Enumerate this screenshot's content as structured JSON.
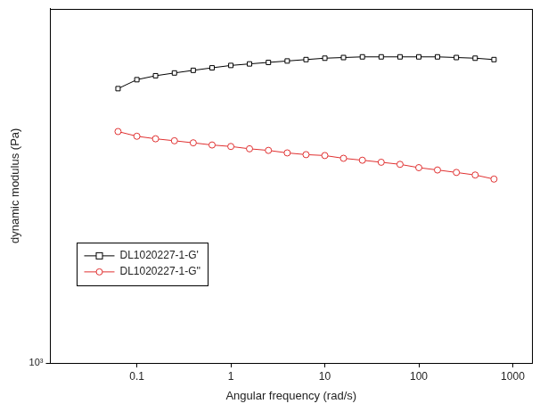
{
  "chart_data": {
    "type": "line",
    "x_label": "Angular frequency (rad/s)",
    "y_label": "dynamic modulus (Pa)",
    "x": [
      0.063,
      0.1,
      0.158,
      0.251,
      0.398,
      0.631,
      1,
      1.58,
      2.51,
      3.98,
      6.31,
      10,
      15.8,
      25.1,
      39.8,
      63.1,
      100,
      158,
      251,
      398,
      631
    ],
    "series": [
      {
        "name": "DL1020227-1-G'",
        "color": "#000000",
        "marker": "square",
        "line_style": "solid",
        "values": [
          210000,
          250000,
          270000,
          285000,
          300000,
          315000,
          330000,
          340000,
          350000,
          360000,
          370000,
          380000,
          385000,
          390000,
          390000,
          390000,
          390000,
          390000,
          385000,
          380000,
          370000
        ]
      },
      {
        "name": "DL1020227-1-G''",
        "color": "#e03030",
        "marker": "circle",
        "line_style": "solid",
        "values": [
          91000,
          83000,
          79000,
          76000,
          73000,
          70000,
          68000,
          65000,
          63000,
          60000,
          58000,
          57000,
          54000,
          52000,
          50000,
          48000,
          45000,
          43000,
          41000,
          39000,
          36000
        ]
      }
    ],
    "xlim": [
      0.012,
      1600
    ],
    "ylim": [
      1000,
      1000000
    ],
    "xticks": [
      0.1,
      1,
      10,
      100,
      1000
    ],
    "yticks": [
      {
        "value": 1000,
        "label": "10³"
      }
    ],
    "log": true,
    "grid": false,
    "legend": "lower left"
  }
}
